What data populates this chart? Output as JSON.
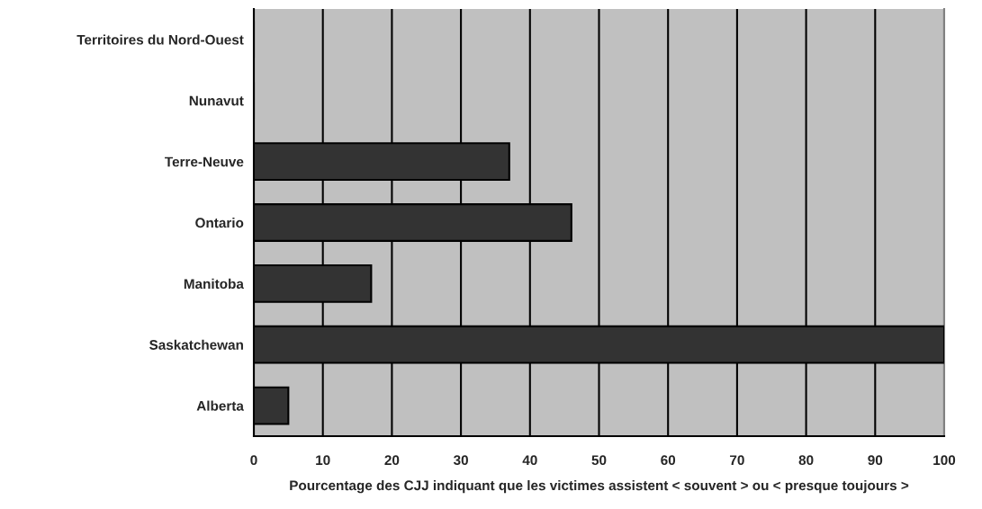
{
  "chart_data": {
    "type": "bar",
    "orientation": "horizontal",
    "xlabel": "Pourcentage des CJJ indiquant que les victimes assistent < souvent > ou < presque toujours >",
    "categories": [
      "Territoires du Nord-Ouest",
      "Nunavut",
      "Terre-Neuve",
      "Ontario",
      "Manitoba",
      "Saskatchewan",
      "Alberta"
    ],
    "values": [
      0,
      0,
      37,
      46,
      17,
      100,
      5
    ],
    "color": "#333333",
    "xlim": [
      0,
      100
    ],
    "xticks": [
      0,
      10,
      20,
      30,
      40,
      50,
      60,
      70,
      80,
      90,
      100
    ],
    "grid": "x",
    "legend": false
  }
}
